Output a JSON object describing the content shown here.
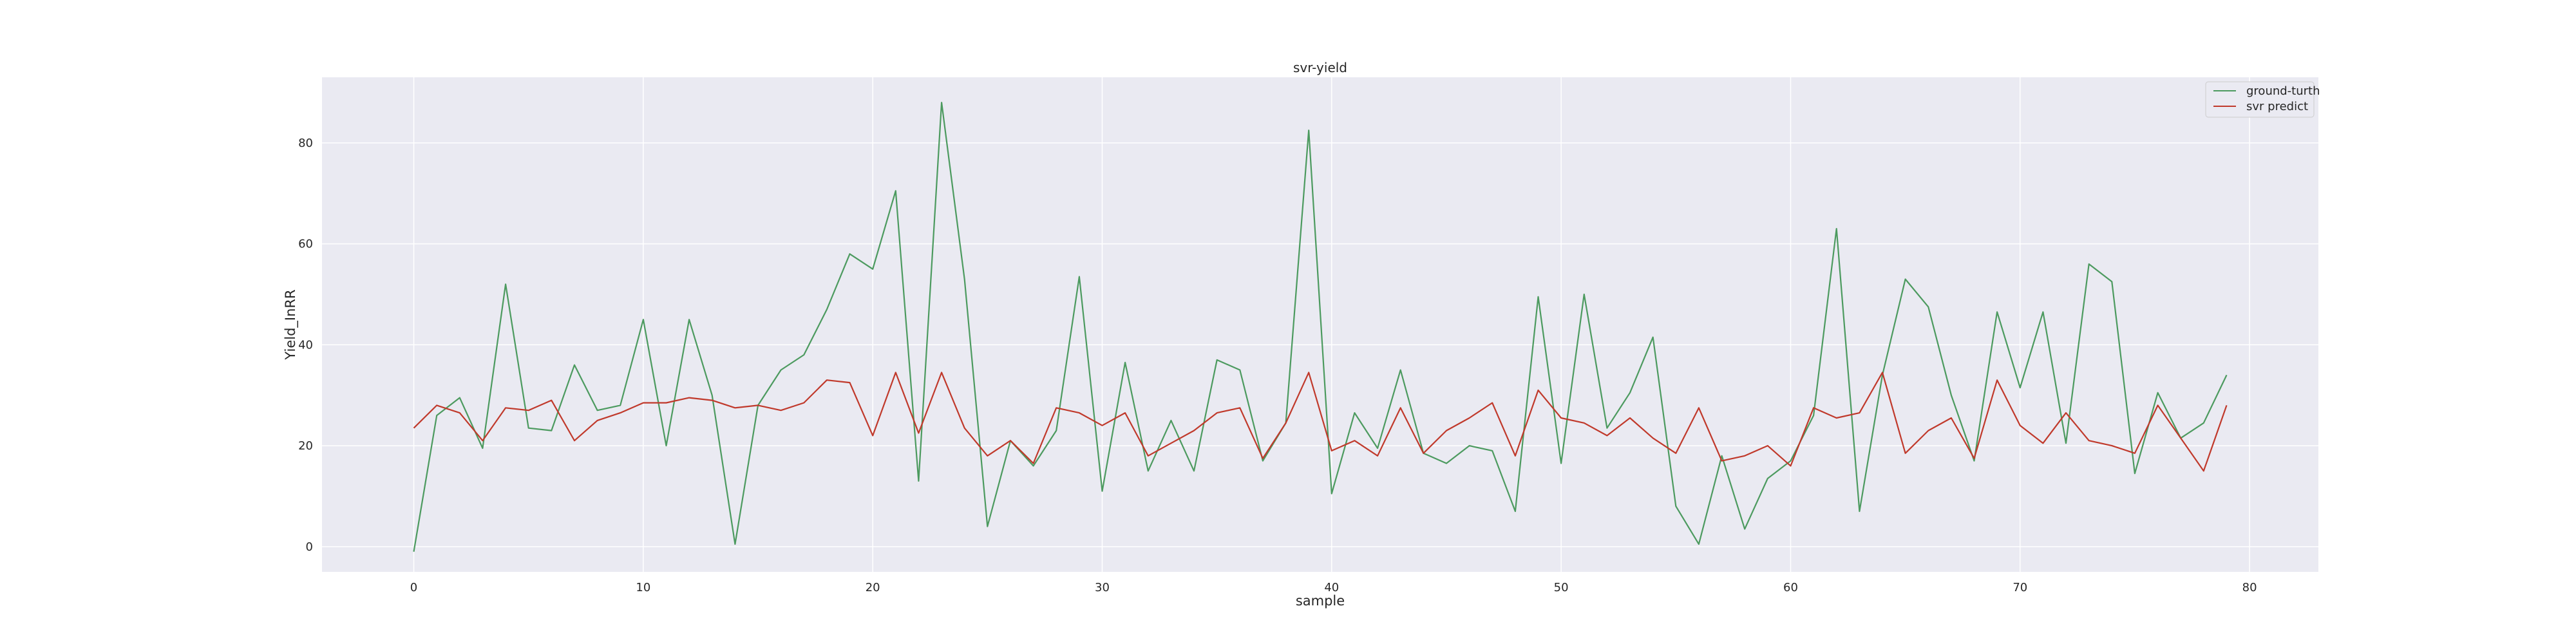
{
  "chart_data": {
    "type": "line",
    "title": "svr-yield",
    "xlabel": "sample",
    "ylabel": "Yield_InRR",
    "xlim": [
      -4,
      83
    ],
    "ylim": [
      -5,
      93
    ],
    "xticks": [
      0,
      10,
      20,
      30,
      40,
      50,
      60,
      70,
      80
    ],
    "yticks": [
      0,
      20,
      40,
      60,
      80
    ],
    "grid": true,
    "legend_position": "top-right",
    "colors": {
      "background": "#eaeaf2",
      "grid": "#ffffff",
      "ground_truth": "#4c9a5f",
      "svr_predict": "#c0392b"
    },
    "series": [
      {
        "name": "ground-turth",
        "color": "#4c9a5f",
        "values": [
          -1,
          26,
          29.5,
          19.5,
          52,
          23.5,
          23,
          36,
          27,
          28,
          45,
          20,
          45,
          30,
          0.5,
          28,
          35,
          38,
          47,
          58,
          55,
          70.5,
          13,
          88,
          53,
          4,
          21,
          16,
          23,
          53.5,
          11,
          36.5,
          15,
          25,
          15,
          37,
          35,
          17,
          24.5,
          82.5,
          10.5,
          26.5,
          19.5,
          35,
          18.5,
          16.5,
          20,
          19,
          7,
          49.5,
          16.5,
          50,
          23.5,
          30.5,
          41.5,
          8,
          0.5,
          18,
          3.5,
          13.5,
          17,
          26,
          63,
          7,
          34,
          53,
          47.5,
          30,
          17,
          46.5,
          31.5,
          46.5,
          20.5,
          56,
          52.5,
          14.5,
          30.5,
          21.5,
          24.5,
          34
        ]
      },
      {
        "name": "svr predict",
        "color": "#c0392b",
        "values": [
          23.5,
          28,
          26.5,
          21,
          27.5,
          27,
          29,
          21,
          25,
          26.5,
          28.5,
          28.5,
          29.5,
          29,
          27.5,
          28,
          27,
          28.5,
          33,
          32.5,
          22,
          34.5,
          22.5,
          34.5,
          23.5,
          18,
          21,
          16.5,
          27.5,
          26.5,
          24,
          26.5,
          18,
          20.5,
          23,
          26.5,
          27.5,
          17.5,
          24.5,
          34.5,
          19,
          21,
          18,
          27.5,
          18.5,
          23,
          25.5,
          28.5,
          18,
          31,
          25.5,
          24.5,
          22,
          25.5,
          21.5,
          18.5,
          27.5,
          17,
          18,
          20,
          16,
          27.5,
          25.5,
          26.5,
          34.5,
          18.5,
          23,
          25.5,
          17.5,
          33,
          24,
          20.5,
          26.5,
          21,
          20,
          18.5,
          28,
          21.5,
          15,
          28
        ]
      }
    ]
  }
}
